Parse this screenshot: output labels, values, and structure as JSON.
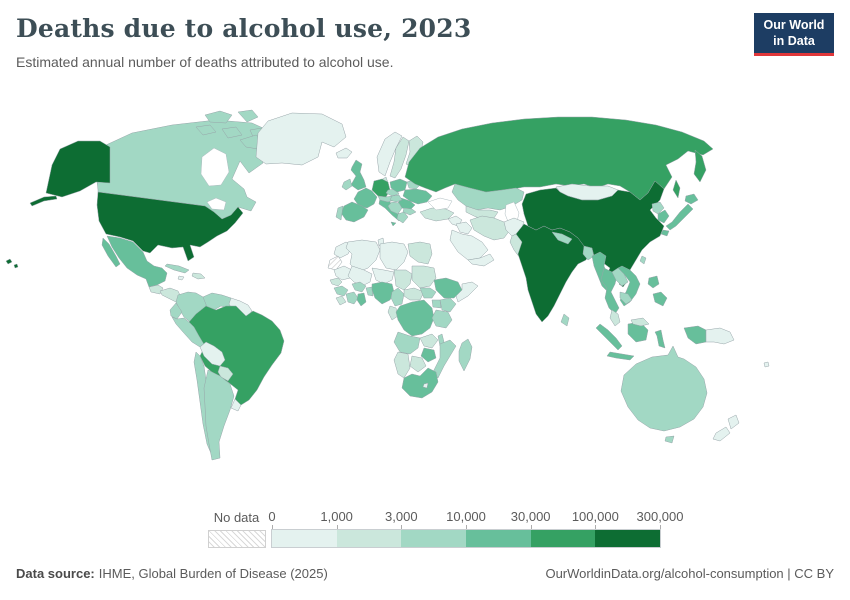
{
  "header": {
    "title": "Deaths due to alcohol use, 2023",
    "subtitle": "Estimated annual number of deaths attributed to alcohol use.",
    "logo": {
      "line1": "Our World",
      "line2": "in Data",
      "bg_color": "#1d3d63",
      "accent_color": "#e0373a"
    }
  },
  "footer": {
    "source_label": "Data source:",
    "source_text": "IHME, Global Burden of Disease (2025)",
    "link_text": "OurWorldinData.org/alcohol-consumption | CC BY"
  },
  "chart_data": {
    "type": "heatmap",
    "subtype": "choropleth-world-map",
    "title": "Deaths due to alcohol use, 2023",
    "unit": "deaths",
    "legend": {
      "no_data_label": "No data",
      "no_data_pattern": "diagonal-hatch",
      "tick_labels": [
        "0",
        "1,000",
        "3,000",
        "10,000",
        "30,000",
        "100,000",
        "300,000"
      ],
      "bucket_ranges": [
        "0–1,000",
        "1,000–3,000",
        "3,000–10,000",
        "10,000–30,000",
        "30,000–100,000",
        "100,000–300,000"
      ],
      "bucket_colors": [
        "#e4f2ef",
        "#cbe7dc",
        "#a2d8c4",
        "#67bf9b",
        "#35a163",
        "#0d6d33"
      ],
      "border_color": "#97a5a9"
    },
    "countries": {
      "united-states": 6,
      "canada": 3,
      "greenland": 1,
      "mexico": 4,
      "guatemala": 2,
      "honduras": 2,
      "costa-rica": 1,
      "cuba": 3,
      "hispaniola": 2,
      "jamaica": 1,
      "colombia": 3,
      "venezuela": 3,
      "guyana": 1,
      "ecuador": 3,
      "peru": 3,
      "brazil": 5,
      "bolivia": 1,
      "paraguay": 2,
      "chile": 3,
      "argentina": 3,
      "uruguay": 1,
      "iceland": 1,
      "united-kingdom": 4,
      "ireland": 3,
      "norway": 1,
      "sweden": 2,
      "finland": 2,
      "denmark": 2,
      "baltic-states": 2,
      "germany": 5,
      "france": 4,
      "spain": 4,
      "portugal": 3,
      "italy": 4,
      "austria": 3,
      "czechia": 3,
      "poland": 4,
      "belarus": 3,
      "ukraine": 4,
      "romania": 4,
      "hungary": 3,
      "balkans": 3,
      "greece": 3,
      "bulgaria": 3,
      "turkey": 2,
      "russia": 5,
      "kazakhstan": 3,
      "uzbekistan": 2,
      "mongolia": 1,
      "syria": 1,
      "iraq": 1,
      "saudi-arabia": 1,
      "yemen": 1,
      "iran": 2,
      "afghanistan": 1,
      "pakistan": 2,
      "india": 6,
      "nepal": 3,
      "bangladesh": 3,
      "sri-lanka": 3,
      "china": 6,
      "north-korea": 3,
      "south-korea": 4,
      "japan": 4,
      "taiwan": 3,
      "myanmar": 4,
      "thailand": 4,
      "laos": 3,
      "vietnam": 4,
      "cambodia": 3,
      "malaysia": 2,
      "indonesia": 4,
      "papua-new-guinea": 1,
      "philippines": 4,
      "australia": 3,
      "new-zealand": 1,
      "fiji": 1,
      "morocco": 1,
      "western-sahara": 0,
      "algeria": 1,
      "tunisia": 1,
      "libya": 1,
      "egypt": 2,
      "mauritania": 1,
      "mali": 1,
      "niger": 1,
      "chad": 2,
      "sudan": 2,
      "senegal": 2,
      "guinea": 3,
      "liberia": 2,
      "ivory-coast": 3,
      "ghana": 4,
      "burkina-faso": 3,
      "benin": 3,
      "nigeria": 4,
      "cameroon": 3,
      "central-african-republic": 2,
      "south-sudan": 3,
      "ethiopia": 4,
      "somalia": 1,
      "kenya": 3,
      "uganda": 3,
      "congo": 2,
      "drc": 4,
      "tanzania": 3,
      "angola": 3,
      "zambia": 2,
      "malawi": 3,
      "mozambique": 3,
      "zimbabwe": 4,
      "botswana": 2,
      "namibia": 2,
      "south-africa": 4,
      "lesotho": 1,
      "madagascar": 3
    }
  }
}
